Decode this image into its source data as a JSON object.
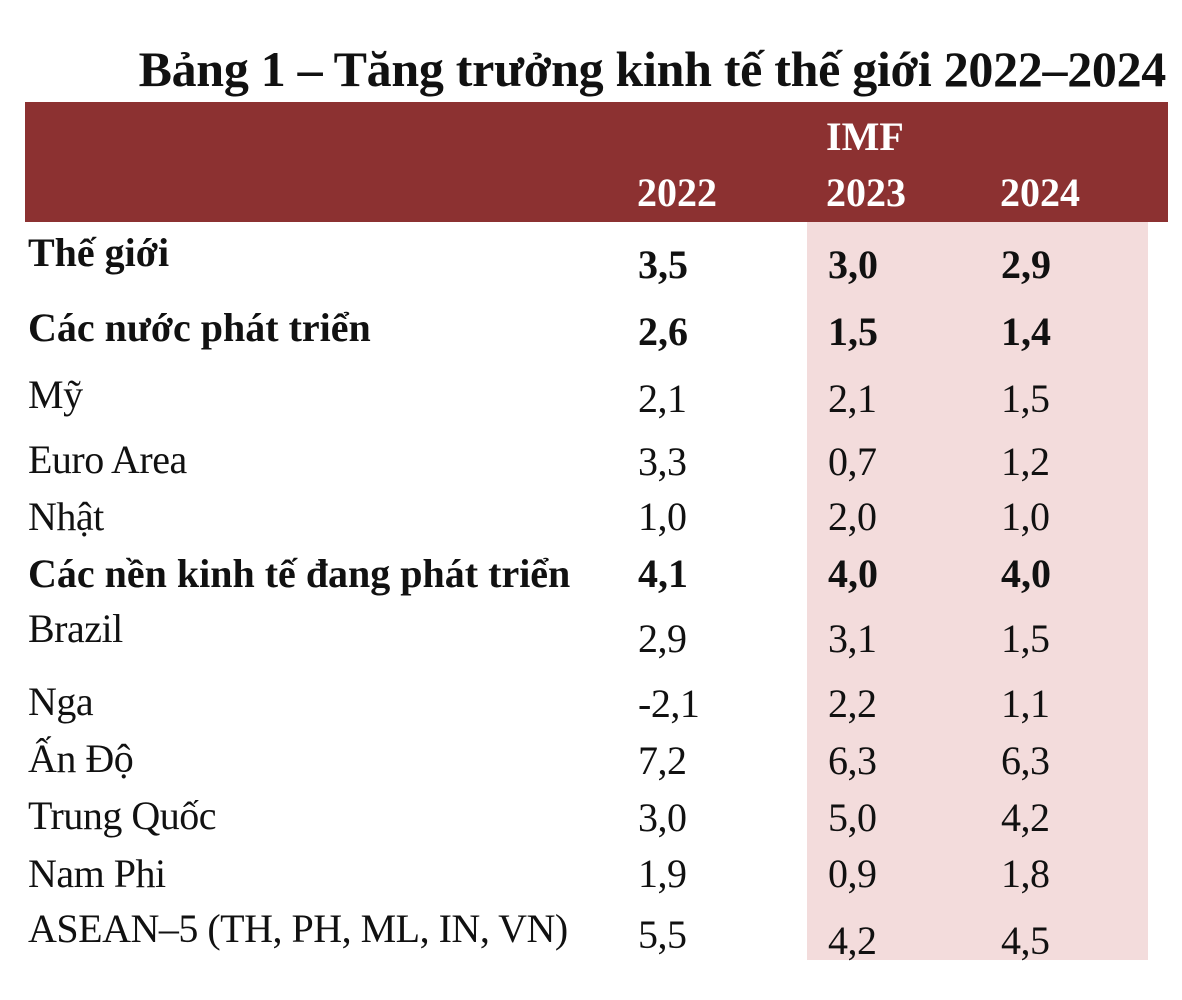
{
  "title": "Bảng 1 – Tăng trưởng kinh tế thế giới 2022–2024",
  "header": {
    "source": "IMF",
    "years": [
      "2022",
      "2023",
      "2024"
    ]
  },
  "colors": {
    "header_bg": "#8c3131",
    "header_text": "#ffffff",
    "forecast_bg": "#f3dcdc"
  },
  "rows": [
    {
      "label": "Thế giới",
      "y2022": "3,5",
      "y2023": "3,0",
      "y2024": "2,9",
      "bold": true
    },
    {
      "label": "Các nước phát triển",
      "y2022": "2,6",
      "y2023": "1,5",
      "y2024": "1,4",
      "bold": true
    },
    {
      "label": "Mỹ",
      "y2022": "2,1",
      "y2023": "2,1",
      "y2024": "1,5",
      "bold": false
    },
    {
      "label": "Euro Area",
      "y2022": "3,3",
      "y2023": "0,7",
      "y2024": "1,2",
      "bold": false
    },
    {
      "label": "Nhật",
      "y2022": "1,0",
      "y2023": "2,0",
      "y2024": "1,0",
      "bold": false
    },
    {
      "label": "Các nền kinh tế đang phát triển",
      "y2022": "4,1",
      "y2023": "4,0",
      "y2024": "4,0",
      "bold": true
    },
    {
      "label": "Brazil",
      "y2022": "2,9",
      "y2023": "3,1",
      "y2024": "1,5",
      "bold": false
    },
    {
      "label": "Nga",
      "y2022": "-2,1",
      "y2023": "2,2",
      "y2024": "1,1",
      "bold": false
    },
    {
      "label": "Ấn Độ",
      "y2022": "7,2",
      "y2023": "6,3",
      "y2024": "6,3",
      "bold": false
    },
    {
      "label": "Trung Quốc",
      "y2022": "3,0",
      "y2023": "5,0",
      "y2024": "4,2",
      "bold": false
    },
    {
      "label": "Nam Phi",
      "y2022": "1,9",
      "y2023": "0,9",
      "y2024": "1,8",
      "bold": false
    },
    {
      "label": "ASEAN–5 (TH, PH, ML, IN, VN)",
      "y2022": "5,5",
      "y2023": "4,2",
      "y2024": "4,5",
      "bold": false
    }
  ]
}
